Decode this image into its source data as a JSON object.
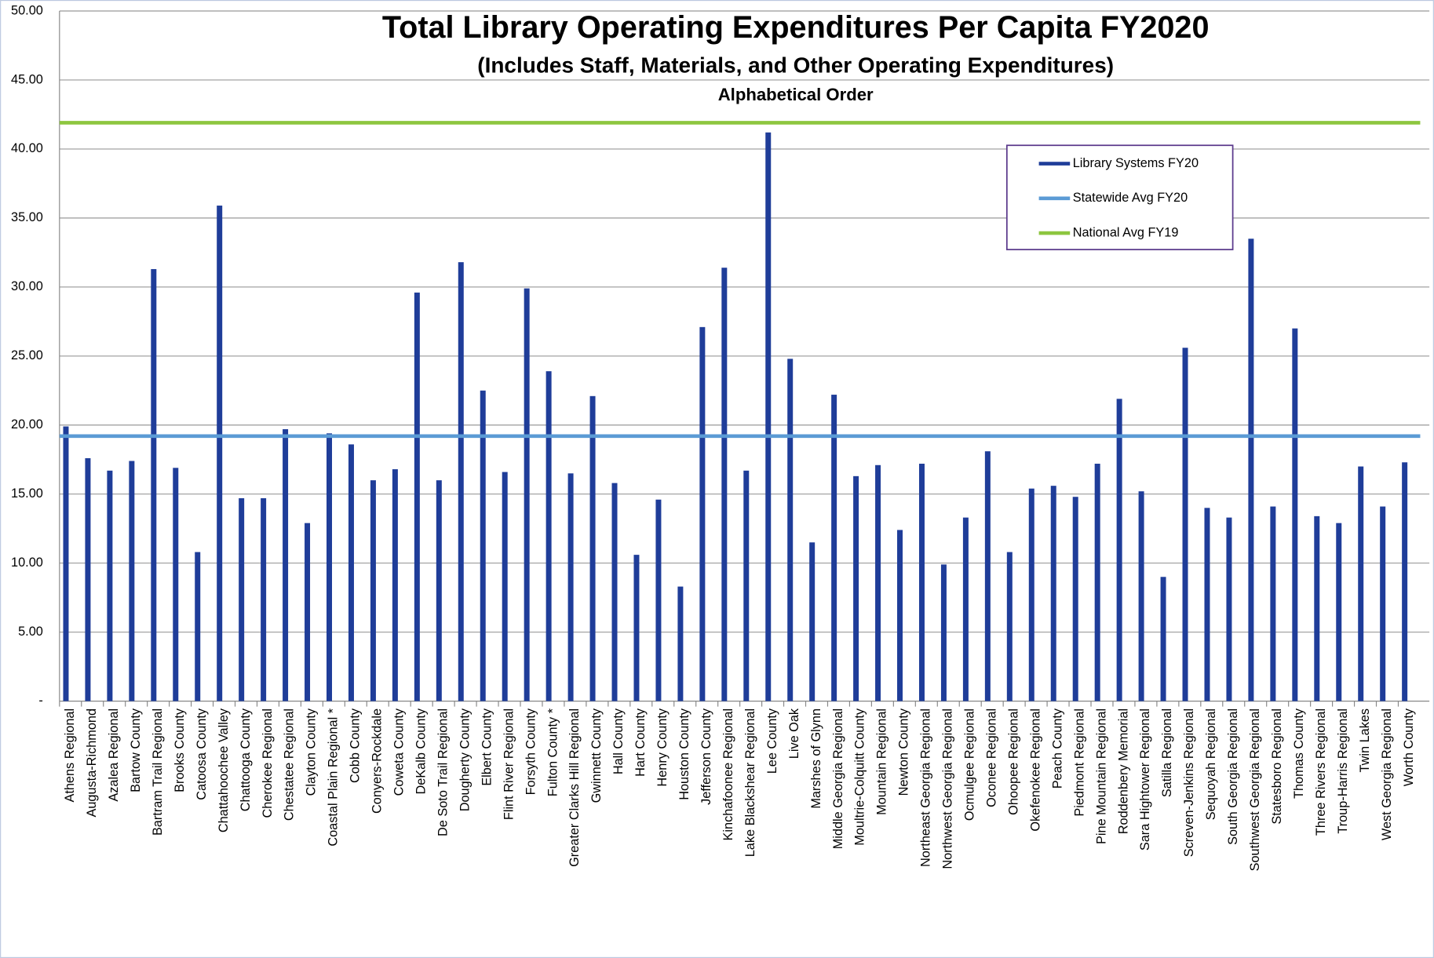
{
  "chart_data": {
    "type": "bar",
    "title": "Total Library Operating Expenditures Per Capita FY2020",
    "subtitle": "(Includes Staff, Materials, and Other Operating Expenditures)",
    "annotation": "Alphabetical Order",
    "categories": [
      "Athens Regional",
      "Augusta-Richmond",
      "Azalea Regional",
      "Bartow County",
      "Bartram Trail Regional",
      "Brooks County",
      "Catoosa County",
      "Chattahoochee Valley",
      "Chattooga County",
      "Cherokee Regional",
      "Chestatee Regional",
      "Clayton County",
      "Coastal Plain Regional *",
      "Cobb County",
      "Conyers-Rockdale",
      "Coweta County",
      "DeKalb County",
      "De Soto Trail Regional",
      "Dougherty County",
      "Elbert County",
      "Flint River Regional",
      "Forsyth County",
      "Fulton County *",
      "Greater Clarks Hill Regional",
      "Gwinnett County",
      "Hall County",
      "Hart County",
      "Henry County",
      "Houston County",
      "Jefferson County",
      "Kinchafoonee Regional",
      "Lake Blackshear Regional",
      "Lee County",
      "Live Oak",
      "Marshes of Glynn",
      "Middle Georgia Regional",
      "Moultrie-Colquitt County",
      "Mountain Regional",
      "Newton County",
      "Northeast Georgia Regional",
      "Northwest Georgia Regional",
      "Ocmulgee Regional",
      "Oconee Regional",
      "Ohoopee Regional",
      "Okefenokee Regional",
      "Peach County",
      "Piedmont Regional",
      "Pine Mountain Regional",
      "Roddenbery Memorial",
      "Sara Hightower Regional",
      "Satilla Regional",
      "Screven-Jenkins Regional",
      "Sequoyah Regional",
      "South Georgia Regional",
      "Southwest Georgia Regional",
      "Statesboro Regional",
      "Thomas County",
      "Three Rivers Regional",
      "Troup-Harris Regional",
      "Twin Lakes",
      "West Georgia Regional",
      "Worth County"
    ],
    "series": [
      {
        "name": "Library Systems FY20",
        "color": "#1f3d99",
        "values": [
          19.9,
          17.6,
          16.7,
          17.4,
          31.3,
          16.9,
          10.8,
          35.9,
          14.7,
          14.7,
          19.7,
          12.9,
          19.4,
          18.6,
          16.0,
          16.8,
          29.6,
          16.0,
          31.8,
          22.5,
          16.6,
          29.9,
          23.9,
          16.5,
          22.1,
          15.8,
          10.6,
          14.6,
          8.3,
          27.1,
          31.4,
          16.7,
          41.2,
          24.8,
          11.5,
          22.2,
          16.3,
          17.1,
          12.4,
          17.2,
          9.9,
          13.3,
          18.1,
          10.8,
          15.4,
          15.6,
          14.8,
          17.2,
          21.9,
          15.2,
          9.0,
          25.6,
          14.0,
          13.3,
          33.5,
          14.1,
          27.0,
          13.4,
          12.9,
          17.0,
          14.1,
          17.3
        ]
      }
    ],
    "reference_lines": [
      {
        "name": "Statewide Avg FY20",
        "color": "#5b9bd5",
        "value": 19.2
      },
      {
        "name": "National Avg FY19",
        "color": "#8dc63f",
        "value": 41.9
      }
    ],
    "ylim": [
      0,
      50
    ],
    "yticks": [
      {
        "value": 0,
        "label": "-"
      },
      {
        "value": 5,
        "label": "5.00"
      },
      {
        "value": 10,
        "label": "10.00"
      },
      {
        "value": 15,
        "label": "15.00"
      },
      {
        "value": 20,
        "label": "20.00"
      },
      {
        "value": 25,
        "label": "25.00"
      },
      {
        "value": 30,
        "label": "30.00"
      },
      {
        "value": 35,
        "label": "35.00"
      },
      {
        "value": 40,
        "label": "40.00"
      },
      {
        "value": 45,
        "label": "45.00"
      },
      {
        "value": 50,
        "label": "50.00"
      }
    ],
    "grid": true,
    "legend": "top-right"
  }
}
